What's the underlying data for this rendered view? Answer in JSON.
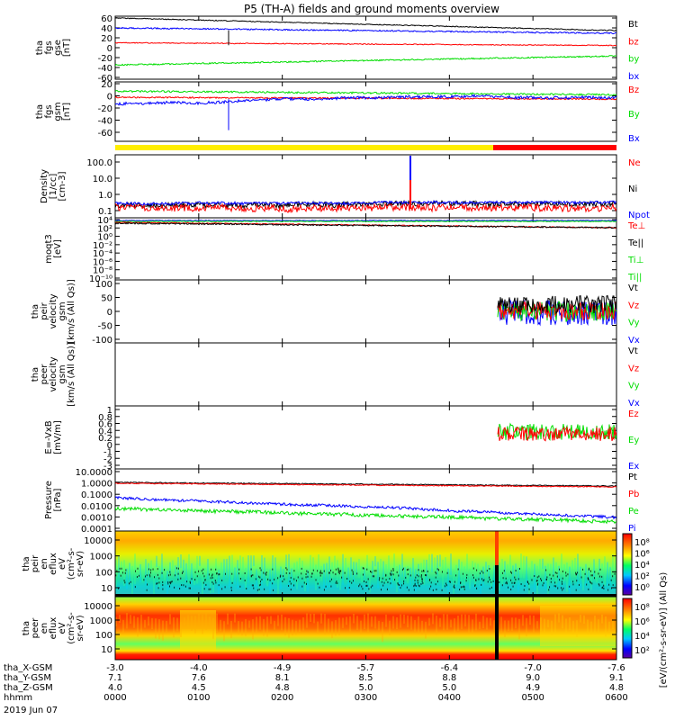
{
  "title": "P5 (TH-A) fields and ground moments overview",
  "colors": {
    "black": "#000000",
    "red": "#ff0000",
    "blue": "#0000ff",
    "green": "#00dd00",
    "yellow": "#ffee00"
  },
  "chart_data": [
    {
      "type": "line",
      "panel": "fgs_gse",
      "ylabel": [
        "tha",
        "fgs",
        "gse",
        "[nT]"
      ],
      "ylim": [
        -60,
        60
      ],
      "yticks": [
        "60",
        "40",
        "20",
        "0",
        "-20",
        "-40",
        "-60"
      ],
      "legend": [
        "Bt",
        "bz",
        "by",
        "bx"
      ],
      "legend_colors": [
        "black",
        "red",
        "green",
        "blue"
      ]
    },
    {
      "type": "line",
      "panel": "fgs_gsm",
      "ylabel": [
        "tha",
        "fgs",
        "gsm",
        "[nT]"
      ],
      "ylim": [
        -70,
        20
      ],
      "yticks": [
        "20",
        "0",
        "-20",
        "-40",
        "-60"
      ],
      "legend": [
        "Bz",
        "By",
        "Bx"
      ],
      "legend_colors": [
        "red",
        "green",
        "blue"
      ]
    },
    {
      "type": "line",
      "panel": "density",
      "ylabel": [
        "Density",
        "[1/cc]",
        "[cm-3]"
      ],
      "yscale": "log",
      "yticks": [
        "100.0",
        "10.0",
        "1.0",
        "0.1"
      ],
      "legend": [
        "Ne",
        "Ni",
        "Npot"
      ],
      "legend_colors": [
        "red",
        "black",
        "blue"
      ]
    },
    {
      "type": "line",
      "panel": "temperature",
      "ylabel": [
        "moqt3",
        "[eV]"
      ],
      "yscale": "log",
      "yticks": [
        "10⁴",
        "10²",
        "10⁰",
        "10⁻²",
        "10⁻⁴",
        "10⁻⁶",
        "10⁻⁸",
        "10⁻¹⁰"
      ],
      "legend": [
        "Te⊥",
        "Te||",
        "Ti⊥",
        "Ti||"
      ],
      "legend_colors": [
        "red",
        "black",
        "green",
        "green"
      ]
    },
    {
      "type": "line",
      "panel": "peir_velocity",
      "ylabel": [
        "tha",
        "peir",
        "velocity",
        "gsm",
        "[km/s (All Qs)]"
      ],
      "ylim": [
        -100,
        100
      ],
      "yticks": [
        "100",
        "50",
        "0",
        "-50",
        "-100"
      ],
      "legend": [
        "Vt",
        "Vz",
        "Vy",
        "Vx"
      ],
      "legend_colors": [
        "black",
        "red",
        "green",
        "blue"
      ]
    },
    {
      "type": "line",
      "panel": "peer_velocity",
      "ylabel": [
        "tha",
        "peer",
        "velocity",
        "gsm",
        "[km/s (All Qs)]"
      ],
      "legend": [
        "Vt",
        "Vz",
        "Vy",
        "Vx"
      ],
      "legend_colors": [
        "black",
        "red",
        "green",
        "blue"
      ]
    },
    {
      "type": "line",
      "panel": "efield",
      "ylabel": [
        "E=-VxB",
        "[mV/m]"
      ],
      "ylim": [
        -3,
        1
      ],
      "yticks": [
        "1",
        "0.8",
        "0.6",
        "0.4",
        "0.2",
        "0",
        "-1",
        "-2",
        "-3"
      ],
      "legend": [
        "Ez",
        "Ey",
        "Ex"
      ],
      "legend_colors": [
        "red",
        "green",
        "blue"
      ]
    },
    {
      "type": "line",
      "panel": "pressure",
      "ylabel": [
        "Pressure",
        "[nPa]"
      ],
      "yscale": "log",
      "yticks": [
        "10.0000",
        "1.0000",
        "0.1000",
        "0.0100",
        "0.0010",
        "0.0001"
      ],
      "legend": [
        "Pt",
        "Pb",
        "Pe",
        "Pi"
      ],
      "legend_colors": [
        "black",
        "red",
        "green",
        "blue"
      ]
    },
    {
      "type": "heatmap",
      "panel": "peir_spectrogram",
      "ylabel": [
        "tha",
        "peir",
        "en",
        "eflux",
        "eV",
        "(cm²-s-",
        "sr-eV)"
      ],
      "yscale": "log",
      "yticks": [
        "10000",
        "1000",
        "100",
        "10"
      ],
      "colorbar_ticks": [
        "10⁸",
        "10⁶",
        "10⁴",
        "10²",
        "10⁰"
      ]
    },
    {
      "type": "heatmap",
      "panel": "peer_spectrogram",
      "ylabel": [
        "tha",
        "peer",
        "en",
        "eflux",
        "eV",
        "(cm²-s-",
        "sr-eV)"
      ],
      "yscale": "log",
      "yticks": [
        "10000",
        "1000",
        "100",
        "10"
      ],
      "colorbar_ticks": [
        "10⁸",
        "10⁶",
        "10⁴",
        "10²"
      ]
    }
  ],
  "colorbar_label": "[eV/(cm²-s-sr-eV)] (All Qs)",
  "x_axis": {
    "row_labels": [
      "tha_X-GSM",
      "tha_Y-GSM",
      "tha_Z-GSM",
      "hhmm",
      "2019 Jun 07"
    ],
    "rows": [
      [
        "-3.0",
        "-4.0",
        "-4.9",
        "-5.7",
        "-6.4",
        "-7.0",
        "-7.6"
      ],
      [
        "7.1",
        "7.6",
        "8.1",
        "8.5",
        "8.8",
        "9.0",
        "9.1"
      ],
      [
        "4.0",
        "4.5",
        "4.8",
        "5.0",
        "5.0",
        "4.9",
        "4.8"
      ],
      [
        "0000",
        "0100",
        "0200",
        "0300",
        "0400",
        "0500",
        "0600"
      ]
    ]
  }
}
